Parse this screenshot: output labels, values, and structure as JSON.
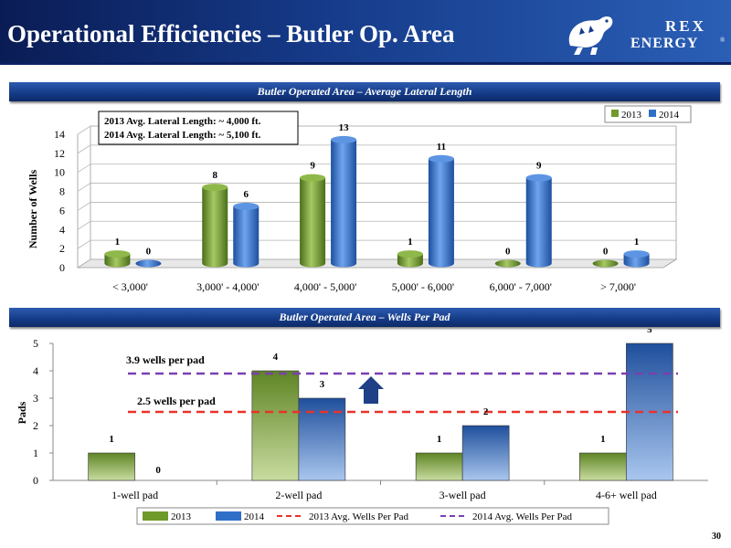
{
  "header": {
    "title": "Operational Efficiencies – Butler Op. Area",
    "logo_line1": "REX",
    "logo_line2": "ENERGY",
    "logo_mark": "®"
  },
  "page_number": "30",
  "colors": {
    "series_2013": "#6f9a2c",
    "series_2014": "#2f6fc8",
    "avg_2013_line": "#e8322a",
    "avg_2014_line": "#7a3fb0",
    "arrow": "#1f3f86",
    "header_bg": "#163b8a"
  },
  "chart_data": [
    {
      "type": "bar",
      "banner": "Butler Operated Area – Average Lateral Length",
      "categories": [
        "< 3,000'",
        "3,000' - 4,000'",
        "4,000' - 5,000'",
        "5,000' - 6,000'",
        "6,000' - 7,000'",
        "> 7,000'"
      ],
      "series": [
        {
          "name": "2013",
          "values": [
            1,
            8,
            9,
            1,
            0,
            0
          ]
        },
        {
          "name": "2014",
          "values": [
            0,
            6,
            13,
            11,
            9,
            1
          ]
        }
      ],
      "ylabel": "Number of Wells",
      "ylim": [
        0,
        14
      ],
      "yticks": [
        0,
        2,
        4,
        6,
        8,
        10,
        12,
        14
      ],
      "grid": true,
      "legend": "top-right",
      "annotations": [
        "2013 Avg. Lateral Length: ~ 4,000 ft.",
        "2014 Avg. Lateral Length: ~ 5,100 ft."
      ]
    },
    {
      "type": "bar",
      "banner": "Butler Operated Area – Wells Per Pad",
      "categories": [
        "1-well pad",
        "2-well pad",
        "3-well pad",
        "4-6+ well pad"
      ],
      "series": [
        {
          "name": "2013",
          "values": [
            1,
            4,
            1,
            1
          ]
        },
        {
          "name": "2014",
          "values": [
            0,
            3,
            2,
            5
          ]
        }
      ],
      "reference_lines": [
        {
          "name": "2013 Avg. Wells Per Pad",
          "value": 2.5,
          "label": "2.5 wells per pad"
        },
        {
          "name": "2014 Avg. Wells Per Pad",
          "value": 3.9,
          "label": "3.9 wells per pad"
        }
      ],
      "ylabel": "Pads",
      "ylim": [
        0,
        5
      ],
      "yticks": [
        0,
        1,
        2,
        3,
        4,
        5
      ],
      "grid": false,
      "legend": "bottom"
    }
  ]
}
